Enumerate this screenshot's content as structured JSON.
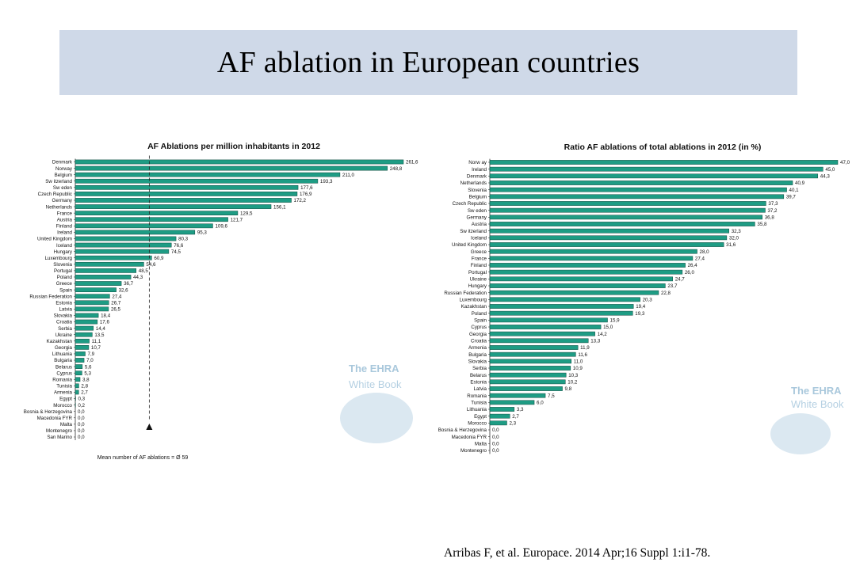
{
  "slide": {
    "title": "AF ablation in European countries",
    "citation": "Arribas F, et al. Europace. 2014 Apr;16 Suppl 1:i1-78."
  },
  "watermark": {
    "line1": "The EHRA",
    "line2": "White Book"
  },
  "colors": {
    "title_band": "#cfd9e8",
    "bar": "#1e9c84",
    "bar_outline": "#0e4a3e",
    "watermark": "#a9c8dc"
  },
  "chart_data": [
    {
      "type": "bar",
      "orientation": "horizontal",
      "title": "AF Ablations per million inhabitants in 2012",
      "categories": [
        "Denmark",
        "Norway",
        "Belgium",
        "Switzerland",
        "Sweden",
        "Czech Republic",
        "Germany",
        "Netherlands",
        "France",
        "Austria",
        "Finland",
        "Ireland",
        "United Kingdom",
        "Iceland",
        "Hungary",
        "Luxembourg",
        "Slovenia",
        "Portugal",
        "Poland",
        "Greece",
        "Spain",
        "Russian Federation",
        "Estonia",
        "Latvia",
        "Slovakia",
        "Croatia",
        "Serbia",
        "Ukraine",
        "Kazakhstan",
        "Georgia",
        "Lithuania",
        "Bulgaria",
        "Belarus",
        "Cyprus",
        "Romania",
        "Tunisia",
        "Armenia",
        "Egypt",
        "Morocco",
        "Bosnia & Herzegovina",
        "Macedonia FYR",
        "Malta",
        "Montenegro",
        "San Marino"
      ],
      "category_labels": [
        "Denmark",
        "Norway",
        "Belgium",
        "Sw itzerland",
        "Sw eden",
        "Czech Republic",
        "Germany",
        "Netherlands",
        "France",
        "Austria",
        "Finland",
        "Ireland",
        "United Kingdom",
        "Iceland",
        "Hungary",
        "Luxembourg",
        "Slovenia",
        "Portugal",
        "Poland",
        "Greece",
        "Spain",
        "Russian Federation",
        "Estonia",
        "Latvia",
        "Slovakia",
        "Croatia",
        "Serbia",
        "Ukraine",
        "Kazakhstan",
        "Georgia",
        "Lithuania",
        "Bulgaria",
        "Belarus",
        "Cyprus",
        "Romania",
        "Tunisia",
        "Armenia",
        "Egypt",
        "Morocco",
        "Bosnia & Herzegovina",
        "Macedonia FYR",
        "Malta",
        "Montenegro",
        "San Marino"
      ],
      "values": [
        261.6,
        248.8,
        211.0,
        193.3,
        177.6,
        176.9,
        172.2,
        156.1,
        129.5,
        121.7,
        109.6,
        95.3,
        80.3,
        76.6,
        74.5,
        60.9,
        54.6,
        48.5,
        44.3,
        36.7,
        32.6,
        27.4,
        26.7,
        26.5,
        18.4,
        17.6,
        14.4,
        13.5,
        11.1,
        10.7,
        7.9,
        7.0,
        5.6,
        5.3,
        3.8,
        2.8,
        2.7,
        0.3,
        0.2,
        0.0,
        0.0,
        0.0,
        0.0,
        0.0
      ],
      "value_labels": [
        "261,6",
        "248,8",
        "211,0",
        "193,3",
        "177,6",
        "176,9",
        "172,2",
        "156,1",
        "129,5",
        "121,7",
        "109,6",
        "95,3",
        "80,3",
        "76,6",
        "74,5",
        "60,9",
        "54,6",
        "48,5",
        "44,3",
        "36,7",
        "32,6",
        "27,4",
        "26,7",
        "26,5",
        "18,4",
        "17,6",
        "14,4",
        "13,5",
        "11,1",
        "10,7",
        "7,9",
        "7,0",
        "5,6",
        "5,3",
        "3,8",
        "2,8",
        "2,7",
        "0,3",
        "0,2",
        "0,0",
        "0,0",
        "0,0",
        "0,0",
        "0,0"
      ],
      "mean_value": 59,
      "mean_label": "Mean number of AF ablations = Ø 59",
      "xlim": [
        0,
        261.6
      ]
    },
    {
      "type": "bar",
      "orientation": "horizontal",
      "title": "Ratio AF ablations of total ablations in 2012 (in %)",
      "categories": [
        "Norway",
        "Ireland",
        "Denmark",
        "Netherlands",
        "Slovenia",
        "Belgium",
        "Czech Republic",
        "Sweden",
        "Germany",
        "Austria",
        "Switzerland",
        "Iceland",
        "United Kingdom",
        "Greece",
        "France",
        "Finland",
        "Portugal",
        "Ukraine",
        "Hungary",
        "Russian Federation",
        "Luxembourg",
        "Kazakhstan",
        "Poland",
        "Spain",
        "Cyprus",
        "Georgia",
        "Croatia",
        "Armenia",
        "Bulgaria",
        "Slovakia",
        "Serbia",
        "Belarus",
        "Estonia",
        "Latvia",
        "Romania",
        "Tunisia",
        "Lithuania",
        "Egypt",
        "Morocco",
        "Bosnia & Herzegovina",
        "Macedonia FYR",
        "Malta",
        "Montenegro"
      ],
      "category_labels": [
        "Norw ay",
        "Ireland",
        "Denmark",
        "Netherlands",
        "Slovenia",
        "Belgium",
        "Czech Republic",
        "Sw eden",
        "Germany",
        "Austria",
        "Sw itzerland",
        "Iceland",
        "United Kingdom",
        "Greece",
        "France",
        "Finland",
        "Portugal",
        "Ukraine",
        "Hungary",
        "Russian Federation",
        "Luxembourg",
        "Kazakhstan",
        "Poland",
        "Spain",
        "Cyprus",
        "Georgia",
        "Croatia",
        "Armenia",
        "Bulgaria",
        "Slovakia",
        "Serbia",
        "Belarus",
        "Estonia",
        "Latvia",
        "Romania",
        "Tunisia",
        "Lithuania",
        "Egypt",
        "Morocco",
        "Bosnia & Herzegovina",
        "Macedonia FYR",
        "Malta",
        "Montenegro"
      ],
      "values": [
        47.0,
        45.0,
        44.3,
        40.9,
        40.1,
        39.7,
        37.3,
        37.2,
        36.8,
        35.8,
        32.3,
        32.0,
        31.6,
        28.0,
        27.4,
        26.4,
        26.0,
        24.7,
        23.7,
        22.8,
        20.3,
        19.4,
        19.3,
        15.9,
        15.0,
        14.2,
        13.3,
        11.9,
        11.6,
        11.0,
        10.9,
        10.3,
        10.2,
        9.8,
        7.5,
        6.0,
        3.3,
        2.7,
        2.3,
        0.0,
        0.0,
        0.0,
        0.0
      ],
      "value_labels": [
        "47,0",
        "45,0",
        "44,3",
        "40,9",
        "40,1",
        "39,7",
        "37,3",
        "37,2",
        "36,8",
        "35,8",
        "32,3",
        "32,0",
        "31,6",
        "28,0",
        "27,4",
        "26,4",
        "26,0",
        "24,7",
        "23,7",
        "22,8",
        "20,3",
        "19,4",
        "19,3",
        "15,9",
        "15,0",
        "14,2",
        "13,3",
        "11,9",
        "11,6",
        "11,0",
        "10,9",
        "10,3",
        "10,2",
        "9,8",
        "7,5",
        "6,0",
        "3,3",
        "2,7",
        "2,3",
        "0,0",
        "0,0",
        "0,0",
        "0,0"
      ],
      "xlim": [
        0,
        47.0
      ]
    }
  ]
}
